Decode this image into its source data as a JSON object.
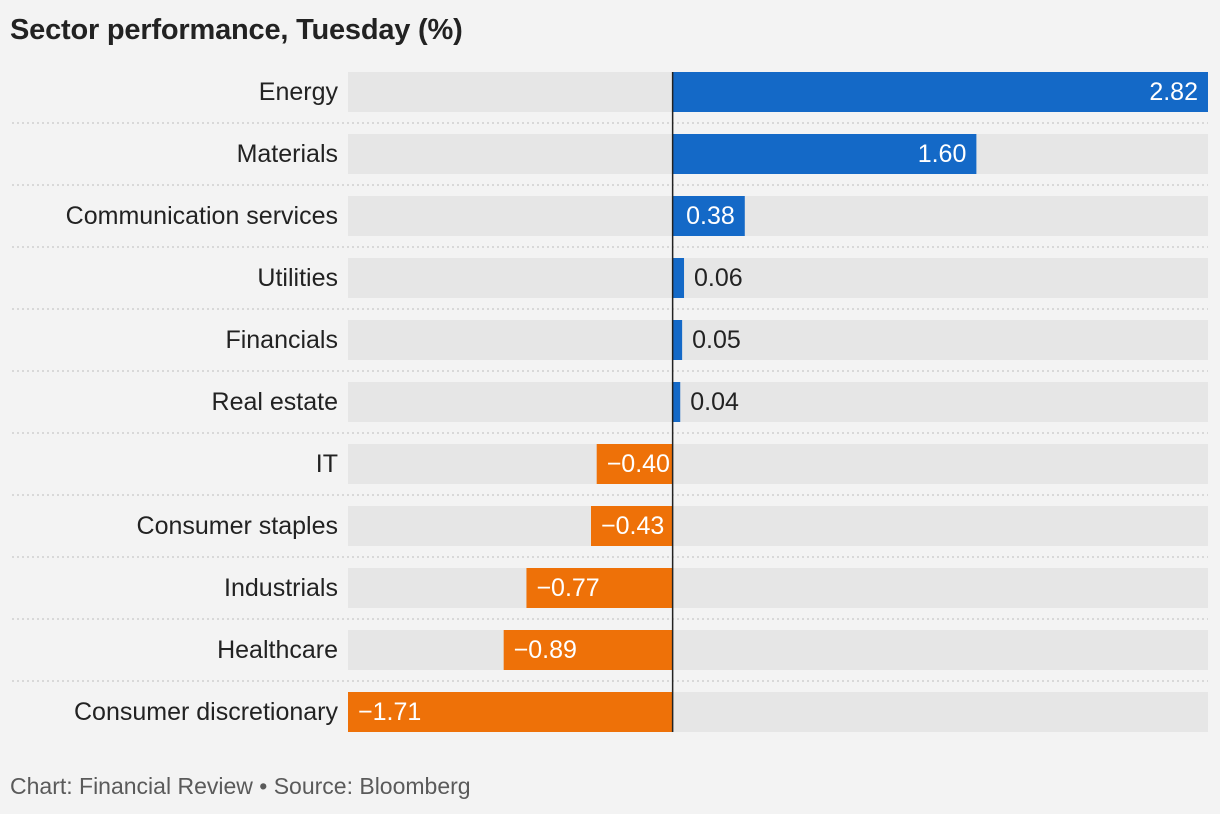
{
  "title": "Sector performance, Tuesday (%)",
  "footer": "Chart: Financial Review • Source: Bloomberg",
  "colors": {
    "positive": "#1469c7",
    "negative": "#ee7108",
    "track": "#e6e6e6",
    "background": "#f3f3f3"
  },
  "chart_data": {
    "type": "bar",
    "orientation": "horizontal",
    "categories": [
      "Energy",
      "Materials",
      "Communication services",
      "Utilities",
      "Financials",
      "Real estate",
      "IT",
      "Consumer staples",
      "Industrials",
      "Healthcare",
      "Consumer discretionary"
    ],
    "values": [
      2.82,
      1.6,
      0.38,
      0.06,
      0.05,
      0.04,
      -0.4,
      -0.43,
      -0.77,
      -0.89,
      -1.71
    ],
    "labels": [
      "2.82",
      "1.60",
      "0.38",
      "0.06",
      "0.05",
      "0.04",
      "−0.40",
      "−0.43",
      "−0.77",
      "−0.89",
      "−1.71"
    ],
    "xlim": [
      -1.71,
      2.82
    ],
    "title": "Sector performance, Tuesday (%)",
    "xlabel": "",
    "ylabel": "",
    "grid": false,
    "legend": "none"
  }
}
